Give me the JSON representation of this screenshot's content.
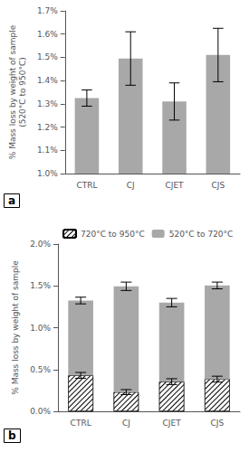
{
  "chart_data": [
    {
      "type": "bar",
      "title": "a",
      "categories": [
        "CTRL",
        "CJ",
        "CJET",
        "CJS"
      ],
      "values": [
        1.325,
        1.495,
        1.31,
        1.51
      ],
      "errors": [
        0.035,
        0.115,
        0.08,
        0.115
      ],
      "color": "#a8a8a8",
      "ylabel": "% Mass loss by weight of sample\n(520°C to 950°C)",
      "ylim": [
        1.0,
        1.7
      ],
      "yticks": [
        {
          "value": 1.0,
          "label": "1.0%"
        },
        {
          "value": 1.1,
          "label": "1.1%"
        },
        {
          "value": 1.2,
          "label": "1.2%"
        },
        {
          "value": 1.3,
          "label": "1.3%"
        },
        {
          "value": 1.4,
          "label": "1.4%"
        },
        {
          "value": 1.5,
          "label": "1.5%"
        },
        {
          "value": 1.6,
          "label": "1.6%"
        },
        {
          "value": 1.7,
          "label": "1.7%"
        }
      ],
      "grid": false
    },
    {
      "type": "bar",
      "title": "b",
      "stacked": true,
      "categories": [
        "CTRL",
        "CJ",
        "CJET",
        "CJS"
      ],
      "series": [
        {
          "name": "720°C to 950°C",
          "color": "#ffffff",
          "values": [
            0.43,
            0.23,
            0.355,
            0.385
          ],
          "errors": [
            0.035,
            0.03,
            0.035,
            0.035
          ]
        },
        {
          "name": "520°C to 720°C",
          "color": "#a8a8a8",
          "values": [
            0.895,
            1.265,
            0.945,
            1.12
          ],
          "errors": [
            0.04,
            0.05,
            0.05,
            0.04
          ]
        }
      ],
      "ylabel": "% Mass loss by weight of sample",
      "ylim": [
        0.0,
        2.0
      ],
      "yticks": [
        {
          "value": 0.0,
          "label": "0.0%"
        },
        {
          "value": 0.5,
          "label": "0.5%"
        },
        {
          "value": 1.0,
          "label": "1.0%"
        },
        {
          "value": 1.5,
          "label": "1.5%"
        },
        {
          "value": 2.0,
          "label": "2.0%"
        }
      ],
      "legend": "upper left",
      "grid": false
    }
  ]
}
